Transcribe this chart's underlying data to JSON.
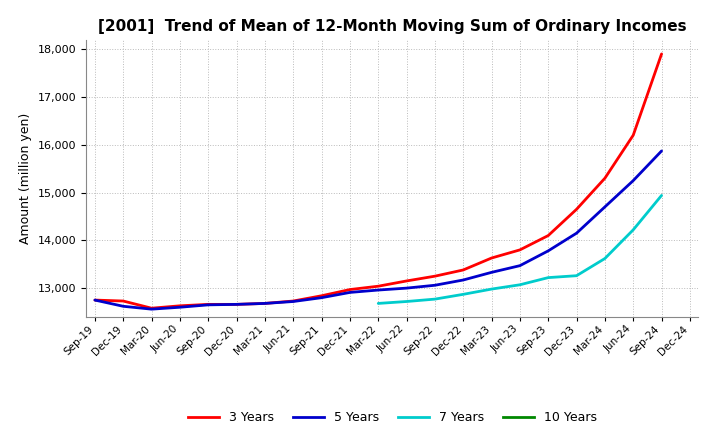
{
  "title": "[2001]  Trend of Mean of 12-Month Moving Sum of Ordinary Incomes",
  "ylabel": "Amount (million yen)",
  "ylim": [
    12400,
    18200
  ],
  "yticks": [
    13000,
    14000,
    15000,
    16000,
    17000,
    18000
  ],
  "background_color": "#ffffff",
  "grid_color": "#bbbbbb",
  "x_labels": [
    "Sep-19",
    "Dec-19",
    "Mar-20",
    "Jun-20",
    "Sep-20",
    "Dec-20",
    "Mar-21",
    "Jun-21",
    "Sep-21",
    "Dec-21",
    "Mar-22",
    "Jun-22",
    "Sep-22",
    "Dec-22",
    "Mar-23",
    "Jun-23",
    "Sep-23",
    "Dec-23",
    "Mar-24",
    "Jun-24",
    "Sep-24",
    "Dec-24"
  ],
  "series": {
    "3 Years": {
      "color": "#ff0000",
      "values": [
        12750,
        12730,
        12580,
        12630,
        12660,
        12660,
        12680,
        12730,
        12840,
        12970,
        13040,
        13150,
        13250,
        13380,
        13630,
        13800,
        14100,
        14650,
        15300,
        16200,
        17900,
        null
      ]
    },
    "5 Years": {
      "color": "#0000cc",
      "values": [
        12750,
        12620,
        12560,
        12600,
        12650,
        12660,
        12680,
        12720,
        12800,
        12910,
        12960,
        13000,
        13060,
        13170,
        13330,
        13470,
        13780,
        14150,
        14700,
        15250,
        15870,
        null
      ]
    },
    "7 Years": {
      "color": "#00cccc",
      "values": [
        null,
        null,
        null,
        null,
        null,
        null,
        null,
        null,
        null,
        null,
        12680,
        12720,
        12770,
        12870,
        12980,
        13070,
        13220,
        13260,
        13620,
        14220,
        14940,
        null
      ]
    },
    "10 Years": {
      "color": "#008800",
      "values": [
        null,
        null,
        null,
        null,
        null,
        null,
        null,
        null,
        null,
        null,
        null,
        null,
        null,
        null,
        null,
        null,
        null,
        null,
        null,
        null,
        null,
        null
      ]
    }
  },
  "legend_entries": [
    "3 Years",
    "5 Years",
    "7 Years",
    "10 Years"
  ],
  "legend_colors": [
    "#ff0000",
    "#0000cc",
    "#00cccc",
    "#008800"
  ],
  "title_fontsize": 11,
  "ylabel_fontsize": 9,
  "tick_fontsize": 8,
  "xtick_fontsize": 7.5,
  "legend_fontsize": 9,
  "linewidth": 2.0
}
